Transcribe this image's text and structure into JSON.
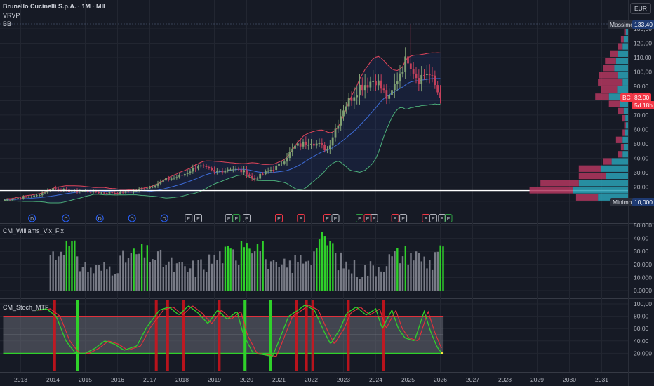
{
  "header": {
    "symbol": "Brunello Cucinelli S.p.A. · 1M · MIL",
    "indicator_1": "VRVP",
    "indicator_2": "BB"
  },
  "currency": "EUR",
  "panes": {
    "williams": "CM_Williams_Vix_Fix",
    "stoch": "CM_Stoch_MTF"
  },
  "price_tags": {
    "max_label": "Massimo",
    "max_value": "133,40",
    "min_label": "Minimo",
    "min_value": "10,000",
    "last_label": "BC",
    "last_value": "82,00",
    "countdown": "5d 18h"
  },
  "colors": {
    "bg": "#161a25",
    "up": "#7f9f73",
    "down": "#c2405b",
    "bb_upper": "#e0455b",
    "bb_basis": "#3d6bd6",
    "bb_lower": "#4caf7a",
    "vp_up": "#2aa3b7",
    "vp_down": "#b3375f",
    "green": "#2fd12a",
    "red": "#d5131b"
  },
  "chart_data": [
    {
      "type": "candlestick",
      "title": "Brunello Cucinelli S.p.A. · 1M · MIL",
      "x_ticks": [
        "2013",
        "2014",
        "2015",
        "2016",
        "2017",
        "2018",
        "2019",
        "2020",
        "2021",
        "2022",
        "2023",
        "2024",
        "2025",
        "2026",
        "2027",
        "2028",
        "2029",
        "2030",
        "2031"
      ],
      "y_ticks": [
        "130,00",
        "120,00",
        "110,00",
        "100,00",
        "90,00",
        "80,00",
        "70,00",
        "60,00",
        "50,00",
        "40,00",
        "30,00",
        "20,00",
        "10,00"
      ],
      "x_range": [
        "2012-07",
        "2031-12"
      ],
      "y_range": [
        5,
        137
      ],
      "yearly_close_waypoints": [
        [
          2012.5,
          11
        ],
        [
          2013.5,
          14
        ],
        [
          2014.0,
          19
        ],
        [
          2014.5,
          17
        ],
        [
          2015.0,
          17
        ],
        [
          2015.5,
          16
        ],
        [
          2016.0,
          16
        ],
        [
          2016.5,
          17
        ],
        [
          2017.0,
          20
        ],
        [
          2017.5,
          25
        ],
        [
          2018.0,
          28
        ],
        [
          2018.5,
          35
        ],
        [
          2019.0,
          30
        ],
        [
          2019.5,
          33
        ],
        [
          2020.0,
          30
        ],
        [
          2020.2,
          25
        ],
        [
          2020.5,
          29
        ],
        [
          2021.0,
          35
        ],
        [
          2021.5,
          48
        ],
        [
          2022.0,
          52
        ],
        [
          2022.5,
          46
        ],
        [
          2023.0,
          75
        ],
        [
          2023.5,
          90
        ],
        [
          2024.0,
          95
        ],
        [
          2024.4,
          80
        ],
        [
          2024.8,
          103
        ],
        [
          2025.0,
          110
        ],
        [
          2025.3,
          95
        ],
        [
          2025.6,
          100
        ],
        [
          2025.85,
          90
        ],
        [
          2026.0,
          82
        ]
      ],
      "bollinger": {
        "upper": "red",
        "basis": "blue",
        "lower": "green"
      },
      "last_close": 82,
      "all_time_high": 133.4,
      "all_time_low": 10,
      "horizontal_line": 17.5,
      "events": [
        {
          "x": 2013.35,
          "t": "D"
        },
        {
          "x": 2014.4,
          "t": "D"
        },
        {
          "x": 2015.45,
          "t": "D"
        },
        {
          "x": 2016.45,
          "t": "D"
        },
        {
          "x": 2017.45,
          "t": "D"
        },
        {
          "x": 2018.2,
          "t": "E"
        },
        {
          "x": 2018.5,
          "t": "E"
        },
        {
          "x": 2019.45,
          "t": "E"
        },
        {
          "x": 2019.68,
          "t": "E"
        },
        {
          "x": 2020.0,
          "t": "E"
        },
        {
          "x": 2021.0,
          "t": "E"
        },
        {
          "x": 2021.68,
          "t": "E"
        },
        {
          "x": 2022.5,
          "t": "E"
        },
        {
          "x": 2022.75,
          "t": "E"
        },
        {
          "x": 2023.5,
          "t": "E"
        },
        {
          "x": 2023.75,
          "t": "E"
        },
        {
          "x": 2023.95,
          "t": "E"
        },
        {
          "x": 2024.6,
          "t": "E"
        },
        {
          "x": 2024.85,
          "t": "E"
        },
        {
          "x": 2025.55,
          "t": "E"
        },
        {
          "x": 2025.78,
          "t": "E"
        },
        {
          "x": 2026.05,
          "t": "E"
        },
        {
          "x": 2026.25,
          "t": "E"
        }
      ]
    },
    {
      "type": "volume_profile",
      "price_levels": [
        10,
        15,
        20,
        25,
        30,
        35,
        40,
        45,
        50,
        55,
        60,
        65,
        70,
        75,
        80,
        85,
        90,
        95,
        100,
        105,
        110,
        115,
        120,
        125,
        130
      ],
      "up_volume": [
        55,
        100,
        90,
        40,
        50,
        30,
        10,
        8,
        10,
        6,
        4,
        5,
        8,
        15,
        35,
        20,
        10,
        18,
        25,
        22,
        18,
        10,
        8,
        4,
        2
      ],
      "down_volume": [
        40,
        80,
        70,
        50,
        40,
        15,
        8,
        5,
        12,
        4,
        3,
        6,
        10,
        20,
        25,
        30,
        45,
        35,
        20,
        20,
        15,
        8,
        5,
        3,
        1
      ]
    },
    {
      "type": "bar",
      "title": "CM_Williams_Vix_Fix",
      "y_ticks": [
        "50,000",
        "40,00",
        "30,00",
        "20,000",
        "10,000",
        "0,0000"
      ],
      "y_range": [
        0,
        50
      ],
      "x_range": [
        "2012-07",
        "2031-12"
      ],
      "note": "monthly bars from 2013-12 to 2026-01; green bars mark extreme readings"
    },
    {
      "type": "line",
      "title": "CM_Stoch_MTF",
      "y_ticks": [
        "100,00",
        "80,00",
        "60,00",
        "40,00",
        "20,000"
      ],
      "y_range": [
        0,
        100
      ],
      "band": [
        20,
        80
      ],
      "waypoints": [
        [
          2013.5,
          90
        ],
        [
          2013.8,
          92
        ],
        [
          2014.1,
          80
        ],
        [
          2014.4,
          40
        ],
        [
          2014.7,
          20
        ],
        [
          2015.0,
          20
        ],
        [
          2015.3,
          28
        ],
        [
          2015.6,
          40
        ],
        [
          2015.9,
          35
        ],
        [
          2016.2,
          25
        ],
        [
          2016.6,
          32
        ],
        [
          2016.9,
          62
        ],
        [
          2017.3,
          90
        ],
        [
          2017.6,
          95
        ],
        [
          2017.9,
          82
        ],
        [
          2018.2,
          97
        ],
        [
          2018.5,
          85
        ],
        [
          2018.8,
          68
        ],
        [
          2019.1,
          90
        ],
        [
          2019.4,
          75
        ],
        [
          2019.7,
          88
        ],
        [
          2019.9,
          50
        ],
        [
          2020.2,
          20
        ],
        [
          2020.5,
          18
        ],
        [
          2020.8,
          15
        ],
        [
          2021.0,
          40
        ],
        [
          2021.3,
          80
        ],
        [
          2021.6,
          90
        ],
        [
          2021.8,
          98
        ],
        [
          2022.1,
          90
        ],
        [
          2022.4,
          55
        ],
        [
          2022.6,
          35
        ],
        [
          2022.9,
          60
        ],
        [
          2023.1,
          85
        ],
        [
          2023.4,
          95
        ],
        [
          2023.7,
          82
        ],
        [
          2024.0,
          92
        ],
        [
          2024.2,
          60
        ],
        [
          2024.5,
          90
        ],
        [
          2024.7,
          60
        ],
        [
          2024.9,
          45
        ],
        [
          2025.2,
          40
        ],
        [
          2025.5,
          88
        ],
        [
          2025.7,
          55
        ],
        [
          2025.9,
          30
        ],
        [
          2026.05,
          20
        ]
      ],
      "green_signal_x": [
        2014.75,
        2019.95,
        2020.75
      ],
      "red_signal_x": [
        2014.05,
        2017.2,
        2017.55,
        2018.05,
        2019.15,
        2021.55,
        2021.85,
        2022.05,
        2023.15,
        2024.25
      ]
    }
  ]
}
